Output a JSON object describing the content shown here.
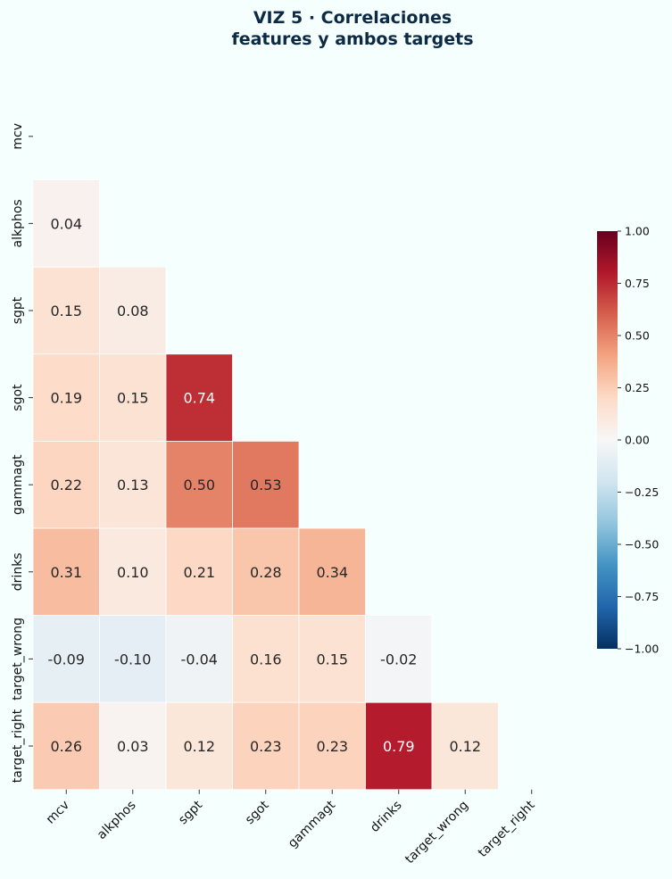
{
  "chart_data": {
    "type": "heatmap",
    "title_lines": [
      "VIZ 5 · Correlaciones",
      "features y ambos targets"
    ],
    "variables": [
      "mcv",
      "alkphos",
      "sgpt",
      "sgot",
      "gammagt",
      "drinks",
      "target_wrong",
      "target_right"
    ],
    "matrix": [
      [
        null,
        null,
        null,
        null,
        null,
        null,
        null,
        null
      ],
      [
        0.04,
        null,
        null,
        null,
        null,
        null,
        null,
        null
      ],
      [
        0.15,
        0.08,
        null,
        null,
        null,
        null,
        null,
        null
      ],
      [
        0.19,
        0.15,
        0.74,
        null,
        null,
        null,
        null,
        null
      ],
      [
        0.22,
        0.13,
        0.5,
        0.53,
        null,
        null,
        null,
        null
      ],
      [
        0.31,
        0.1,
        0.21,
        0.28,
        0.34,
        null,
        null,
        null
      ],
      [
        -0.09,
        -0.1,
        -0.04,
        0.16,
        0.15,
        -0.02,
        null,
        null
      ],
      [
        0.26,
        0.03,
        0.12,
        0.23,
        0.23,
        0.79,
        0.12,
        null
      ]
    ],
    "mask": "upper-triangle",
    "colormap": "RdBu_r",
    "vmin": -1.0,
    "vmax": 1.0,
    "colorbar_ticks": [
      "1.00",
      "0.75",
      "0.50",
      "0.25",
      "0.00",
      "−0.25",
      "−0.50",
      "−0.75",
      "−1.00"
    ],
    "colorbar_values": [
      1.0,
      0.75,
      0.5,
      0.25,
      0.0,
      -0.25,
      -0.5,
      -0.75,
      -1.0
    ],
    "background": "#f5fffe"
  }
}
